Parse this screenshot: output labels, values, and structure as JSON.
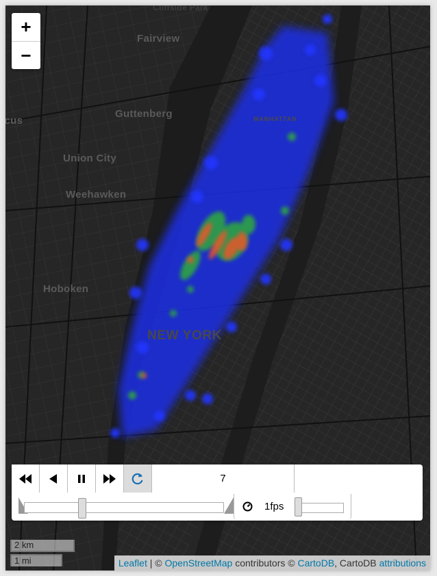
{
  "map": {
    "labels": {
      "top_park": "Cliffside Park",
      "fairview": "Fairview",
      "guttenberg": "Guttenberg",
      "manhattan": "MANHATTAN",
      "union_city": "Union City",
      "weehawken": "Weehawken",
      "hoboken": "Hoboken",
      "new_york": "NEW YORK",
      "left_cut": "icus"
    },
    "heatmap_colors": {
      "low": "#1e2fe0",
      "mid": "#2fae3a",
      "high": "#e8562a"
    }
  },
  "zoom": {
    "in_label": "+",
    "out_label": "−"
  },
  "time_control": {
    "buttons": [
      "backward-icon",
      "step-back-icon",
      "pause-icon",
      "forward-icon",
      "loop-icon"
    ],
    "current_time": "7",
    "slider_fraction": 0.29,
    "speed_label": "1fps",
    "speed_icon": "speedometer-icon"
  },
  "scale": {
    "metric": "2 km",
    "imperial": "1 mi"
  },
  "attribution": {
    "leaflet": "Leaflet",
    "sep1": "| ©",
    "osm": "OpenStreetMap",
    "mid": "contributors ©",
    "carto": "CartoDB",
    "mid2": ", CartoDB",
    "attrib": "attributions"
  }
}
